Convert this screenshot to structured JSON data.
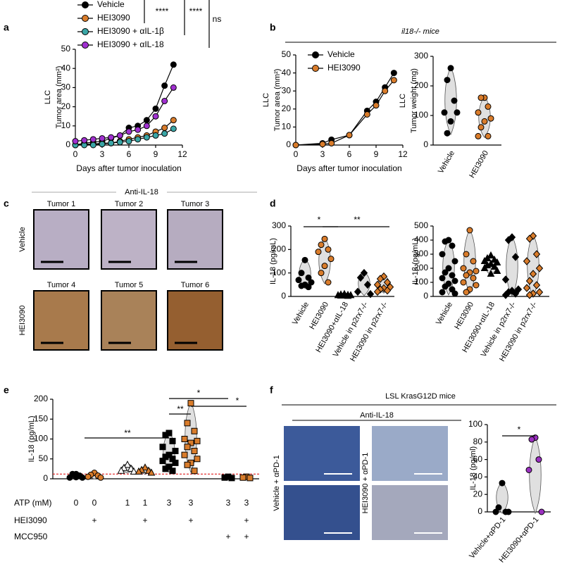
{
  "panel_letters": [
    "a",
    "b",
    "c",
    "d",
    "e",
    "f"
  ],
  "panel_b_title": "il18-/- mice",
  "panel_c": {
    "title": "Anti-IL-18",
    "row_labels": [
      "Vehicle",
      "HEI3090"
    ],
    "tiles": [
      "Tumor 1",
      "Tumor 2",
      "Tumor 3",
      "Tumor 4",
      "Tumor 5",
      "Tumor 6"
    ]
  },
  "panel_f": {
    "title": "LSL KrasG12D mice",
    "subtitle": "Anti-IL-18",
    "column_labels": [
      "Vehicle + αPD-1",
      "HEI3090 + αPD-1"
    ]
  },
  "chart_data": [
    {
      "type": "line",
      "ylabel_group": "LLC",
      "ylabel": "Tumor area (mm²)",
      "xlabel": "Days after tumor inoculation",
      "x": [
        0,
        1,
        2,
        3,
        4,
        5,
        6,
        7,
        8,
        9,
        10,
        11
      ],
      "xlim": [
        0,
        12
      ],
      "xticks": [
        0,
        3,
        6,
        9,
        12
      ],
      "ylim": [
        0,
        50
      ],
      "yticks": [
        0,
        10,
        20,
        30,
        40,
        50
      ],
      "series": [
        {
          "name": "Vehicle",
          "color": "#000000",
          "values": [
            0,
            1,
            1.5,
            2,
            3.5,
            5,
            9,
            10,
            13,
            19,
            31,
            42
          ]
        },
        {
          "name": "HEI3090",
          "color": "#d97c2b",
          "values": [
            0,
            0.5,
            0.5,
            1,
            1,
            2,
            3,
            4,
            5,
            7,
            9,
            13
          ]
        },
        {
          "name": "HEI3090 + αIL-1β",
          "color": "#3aa6a6",
          "values": [
            0,
            0,
            0,
            0.5,
            1,
            1.5,
            2,
            3,
            4,
            5,
            6,
            8.5
          ]
        },
        {
          "name": "HEI3090 + αIL-18",
          "color": "#a030d0",
          "values": [
            2,
            2.5,
            3,
            3.5,
            4,
            5,
            7,
            8,
            10,
            15,
            23,
            30
          ]
        }
      ],
      "annotations": [
        "****",
        "****",
        "ns"
      ]
    },
    {
      "type": "line",
      "ylabel_group": "LLC",
      "ylabel": "Tumor area (mm²)",
      "xlabel": "Days after tumor inoculation",
      "x": [
        0,
        3,
        4,
        6,
        8,
        9,
        10,
        11
      ],
      "xlim": [
        0,
        12
      ],
      "xticks": [
        0,
        3,
        6,
        9,
        12
      ],
      "ylim": [
        0,
        50
      ],
      "yticks": [
        0,
        10,
        20,
        30,
        40,
        50
      ],
      "series": [
        {
          "name": "Vehicle",
          "color": "#000000",
          "values": [
            0,
            1,
            3,
            5.5,
            19,
            24,
            32,
            40
          ]
        },
        {
          "name": "HEI3090",
          "color": "#d97c2b",
          "values": [
            0,
            0.5,
            1,
            5.5,
            17,
            22,
            30,
            36
          ]
        }
      ]
    },
    {
      "type": "dot",
      "violin": true,
      "ylabel_group": "LLC",
      "ylabel": "Tumor weight (mg)",
      "categories": [
        "Vehicle",
        "HEI3090"
      ],
      "colors": [
        "#000000",
        "#d97c2b"
      ],
      "markers": [
        "circle",
        "circle"
      ],
      "values": [
        [
          260,
          220,
          150,
          110,
          110,
          80,
          40
        ],
        [
          160,
          160,
          130,
          110,
          90,
          80,
          60,
          30,
          30
        ]
      ],
      "ylim": [
        0,
        300
      ],
      "yticks": [
        0,
        100,
        200,
        300
      ]
    },
    {
      "type": "dot",
      "violin": true,
      "ylabel": "IL-18 (pg/mL)",
      "categories": [
        "Vehicle",
        "HEI3090",
        "HEI3090+αIL-18",
        "Vehicle in p2rx7-/-",
        "HEI3090 in p2rx7-/-"
      ],
      "colors": [
        "#000000",
        "#d97c2b",
        "#000000",
        "#000000",
        "#d97c2b"
      ],
      "markers": [
        "circle",
        "circle",
        "triangle",
        "diamond",
        "diamond"
      ],
      "values": [
        [
          155,
          100,
          80,
          70,
          60,
          50,
          45,
          40
        ],
        [
          245,
          220,
          200,
          190,
          160,
          130,
          100,
          60
        ],
        [
          10,
          8,
          6,
          5,
          5,
          4,
          3,
          2
        ],
        [
          100,
          80,
          50,
          20,
          10
        ],
        [
          85,
          75,
          60,
          50,
          40,
          35,
          30,
          25,
          20
        ]
      ],
      "ylim": [
        0,
        300
      ],
      "yticks": [
        0,
        100,
        200,
        300
      ],
      "annotations": [
        "*",
        "**"
      ]
    },
    {
      "type": "dot",
      "violin": true,
      "ylabel": "IL-1β (pg/mL)",
      "categories": [
        "Vehicle",
        "HEI3090",
        "HEI3090+αIL-18",
        "Vehicle in p2rx7-/-",
        "HEI3090 in p2rx7-/-"
      ],
      "colors": [
        "#000000",
        "#d97c2b",
        "#000000",
        "#000000",
        "#d97c2b"
      ],
      "markers": [
        "circle",
        "circle",
        "triangle",
        "diamond",
        "diamond"
      ],
      "values": [
        [
          400,
          390,
          360,
          300,
          250,
          200,
          170,
          150,
          130,
          110,
          90,
          70,
          50,
          30,
          20
        ],
        [
          470,
          300,
          250,
          200,
          180,
          170,
          150,
          130,
          100,
          80,
          50,
          30
        ],
        [
          290,
          270,
          260,
          250,
          240,
          230,
          220,
          210,
          200,
          180,
          160
        ],
        [
          420,
          400,
          280,
          120,
          50,
          40,
          30,
          20,
          10
        ],
        [
          430,
          410,
          300,
          250,
          200,
          160,
          110,
          80,
          60,
          30,
          20,
          10
        ]
      ],
      "ylim": [
        0,
        500
      ],
      "yticks": [
        0,
        100,
        200,
        300,
        400,
        500
      ]
    },
    {
      "type": "dot",
      "violin": true,
      "ylabel": "IL-18 (pg/mL)",
      "colors": [
        "#000000",
        "#d97c2b",
        "#000000",
        "#d97c2b",
        "#000000",
        "#d97c2b",
        "#000000",
        "#d97c2b"
      ],
      "markers": [
        "circle",
        "circle",
        "triangle-open",
        "triangle",
        "square",
        "square",
        "square",
        "square"
      ],
      "values": [
        [
          12,
          12,
          8,
          3,
          3,
          4
        ],
        [
          15,
          10,
          8,
          5,
          3
        ],
        [
          35,
          27,
          25,
          20,
          18
        ],
        [
          28,
          22,
          20,
          18,
          15
        ],
        [
          115,
          110,
          95,
          80,
          70,
          60,
          55,
          50,
          45,
          40,
          30,
          25,
          20
        ],
        [
          190,
          140,
          120,
          100,
          95,
          90,
          80,
          70,
          60,
          50,
          40,
          35,
          20
        ],
        [
          5,
          3,
          2
        ],
        [
          5,
          3,
          2
        ]
      ],
      "ylim": [
        0,
        200
      ],
      "yticks": [
        0,
        50,
        100,
        150,
        200
      ],
      "threshold": 12,
      "rows": [
        {
          "label": "ATP (mM)",
          "values": [
            0,
            0,
            1,
            1,
            3,
            3,
            3,
            3
          ]
        },
        {
          "label": "HEI3090",
          "values": [
            null,
            "+",
            null,
            "+",
            null,
            "+",
            null,
            "+"
          ]
        },
        {
          "label": "MCC950",
          "values": [
            null,
            null,
            null,
            null,
            null,
            null,
            "+",
            "+"
          ]
        }
      ],
      "annotations": [
        "**",
        "**",
        "*",
        "*"
      ]
    },
    {
      "type": "dot",
      "violin": true,
      "ylabel": "IL-18 (pg/ml)",
      "categories": [
        "Vehicle+αPD-1",
        "HEI3090+αPD-1"
      ],
      "colors": [
        "#000000",
        "#9b30c0"
      ],
      "markers": [
        "circle",
        "circle"
      ],
      "values": [
        [
          33,
          5,
          0,
          0,
          0
        ],
        [
          85,
          83,
          60,
          48,
          0
        ]
      ],
      "ylim": [
        0,
        100
      ],
      "yticks": [
        0,
        20,
        40,
        60,
        80,
        100
      ],
      "annotations": [
        "*"
      ]
    }
  ]
}
